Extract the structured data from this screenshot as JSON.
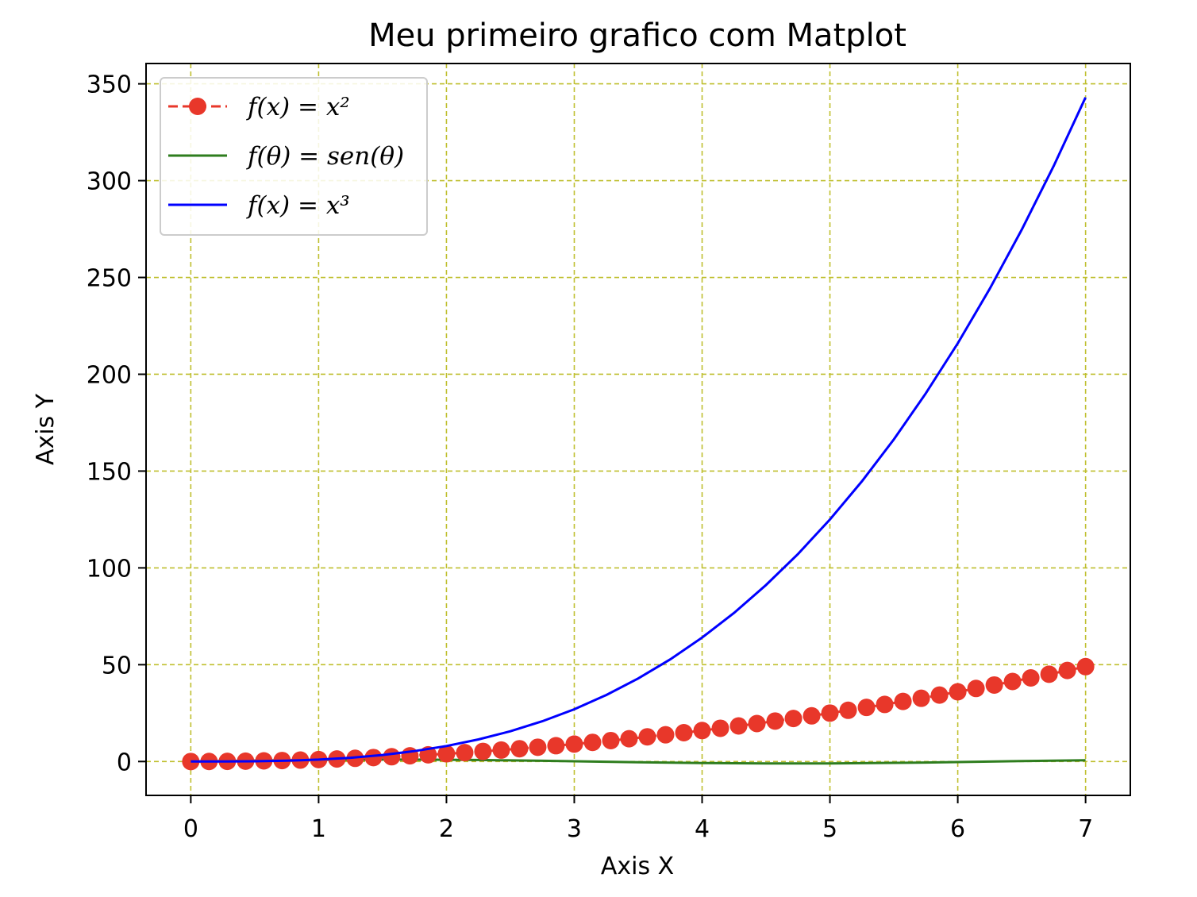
{
  "chart_data": {
    "type": "line",
    "title": "Meu primeiro grafico com Matplot",
    "xlabel": "Axis X",
    "ylabel": "Axis Y",
    "xlim": [
      -0.35,
      7.35
    ],
    "ylim": [
      -17.5,
      360.5
    ],
    "xticks": [
      "0",
      "1",
      "2",
      "3",
      "4",
      "5",
      "6",
      "7"
    ],
    "yticks": [
      "0",
      "50",
      "100",
      "150",
      "200",
      "250",
      "300",
      "350"
    ],
    "grid": true,
    "grid_color": "#bfbf2e",
    "legend_position": "upper left",
    "series": [
      {
        "name": "f(x) = x²",
        "color": "#e8372a",
        "style": "dashed-with-circle-markers",
        "x": [
          0,
          0.1429,
          0.2857,
          0.4286,
          0.5714,
          0.7143,
          0.8571,
          1.0,
          1.1429,
          1.2857,
          1.4286,
          1.5714,
          1.7143,
          1.8571,
          2.0,
          2.1429,
          2.2857,
          2.4286,
          2.5714,
          2.7143,
          2.8571,
          3.0,
          3.1429,
          3.2857,
          3.4286,
          3.5714,
          3.7143,
          3.8571,
          4.0,
          4.1429,
          4.2857,
          4.4286,
          4.5714,
          4.7143,
          4.8571,
          5.0,
          5.1429,
          5.2857,
          5.4286,
          5.5714,
          5.7143,
          5.8571,
          6.0,
          6.1429,
          6.2857,
          6.4286,
          6.5714,
          6.7143,
          6.8571,
          7.0
        ],
        "y": [
          0,
          0.02,
          0.08,
          0.18,
          0.33,
          0.51,
          0.73,
          1.0,
          1.31,
          1.65,
          2.04,
          2.47,
          2.94,
          3.45,
          4.0,
          4.59,
          5.22,
          5.9,
          6.61,
          7.37,
          8.16,
          9.0,
          9.88,
          10.8,
          11.76,
          12.76,
          13.8,
          14.88,
          16.0,
          17.16,
          18.37,
          19.61,
          20.9,
          22.22,
          23.59,
          25.0,
          26.45,
          27.94,
          29.47,
          31.04,
          32.65,
          34.31,
          36.0,
          37.73,
          39.51,
          41.33,
          43.18,
          45.08,
          47.02,
          49.0
        ]
      },
      {
        "name": "f(θ) = sen(θ)",
        "color": "#2e7d1e",
        "style": "solid",
        "x": [
          0,
          0.25,
          0.5,
          0.75,
          1.0,
          1.25,
          1.5,
          1.75,
          2.0,
          2.25,
          2.5,
          2.75,
          3.0,
          3.25,
          3.5,
          3.75,
          4.0,
          4.25,
          4.5,
          4.75,
          5.0,
          5.25,
          5.5,
          5.75,
          6.0,
          6.25,
          6.5,
          6.75,
          7.0
        ],
        "y": [
          0,
          0.25,
          0.48,
          0.68,
          0.84,
          0.95,
          1.0,
          0.98,
          0.91,
          0.78,
          0.6,
          0.38,
          0.14,
          -0.11,
          -0.35,
          -0.57,
          -0.76,
          -0.89,
          -0.98,
          -1.0,
          -0.96,
          -0.86,
          -0.71,
          -0.51,
          -0.28,
          -0.03,
          0.22,
          0.45,
          0.66
        ]
      },
      {
        "name": "f(x) = x³",
        "color": "#0000ff",
        "style": "solid",
        "x": [
          0,
          0.25,
          0.5,
          0.75,
          1.0,
          1.25,
          1.5,
          1.75,
          2.0,
          2.25,
          2.5,
          2.75,
          3.0,
          3.25,
          3.5,
          3.75,
          4.0,
          4.25,
          4.5,
          4.75,
          5.0,
          5.25,
          5.5,
          5.75,
          6.0,
          6.25,
          6.5,
          6.75,
          7.0
        ],
        "y": [
          0,
          0.02,
          0.13,
          0.42,
          1.0,
          1.95,
          3.38,
          5.36,
          8.0,
          11.39,
          15.63,
          20.8,
          27.0,
          34.33,
          42.88,
          52.73,
          64.0,
          76.77,
          91.13,
          107.17,
          125.0,
          144.7,
          166.38,
          190.11,
          216.0,
          244.14,
          274.63,
          307.55,
          343.0
        ]
      }
    ]
  }
}
